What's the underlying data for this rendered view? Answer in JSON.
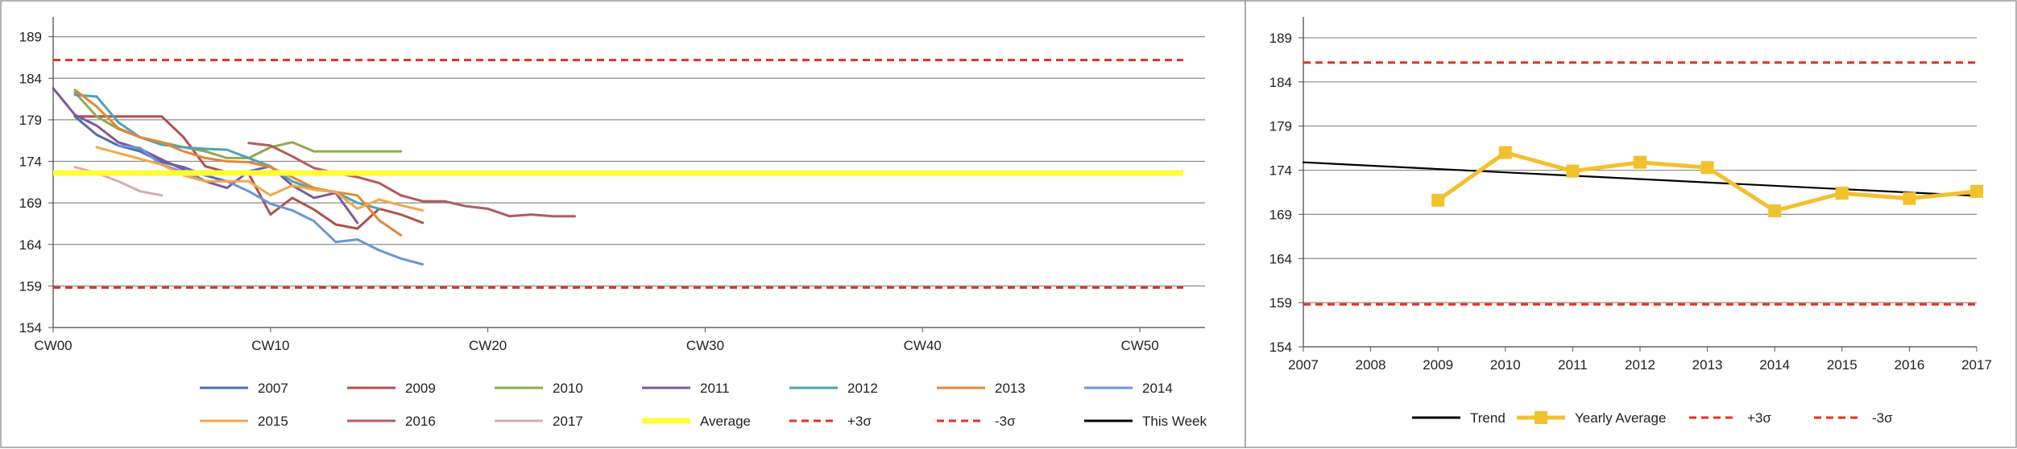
{
  "chart_data": [
    {
      "type": "line",
      "title": "",
      "xlabel": "",
      "ylabel": "",
      "x_ticks": [
        "CW00",
        "CW10",
        "CW20",
        "CW30",
        "CW40",
        "CW50"
      ],
      "x_tick_values": [
        0,
        10,
        20,
        30,
        40,
        50
      ],
      "xlim": [
        0,
        53
      ],
      "y_ticks": [
        "154",
        "159",
        "164",
        "169",
        "174",
        "179",
        "184",
        "189"
      ],
      "ylim": [
        154,
        191
      ],
      "grid": "horizontal",
      "legend_position": "bottom",
      "series": [
        {
          "name": "2007",
          "color": "#4F6EB3",
          "style": "solid",
          "x": [
            1,
            2,
            3,
            4,
            5,
            6,
            7,
            8
          ],
          "y": [
            179.4,
            177.2,
            175.9,
            175.2,
            173.9,
            173.3,
            172.3,
            171.6
          ]
        },
        {
          "name": "2009",
          "color": "#B2504E",
          "style": "solid",
          "x": [
            1,
            2,
            3,
            4,
            5,
            6,
            7,
            8,
            9,
            10,
            11,
            12,
            13,
            14,
            15,
            16,
            17
          ],
          "y": [
            179.4,
            179.4,
            179.4,
            179.4,
            179.4,
            176.9,
            173.4,
            172.7,
            172.5,
            167.6,
            169.6,
            168.2,
            166.4,
            165.9,
            168.3,
            167.6,
            166.6
          ]
        },
        {
          "name": "2010",
          "color": "#8FAA4E",
          "style": "solid",
          "x": [
            1,
            2,
            3,
            4,
            5,
            6,
            7,
            8,
            9,
            10,
            11,
            12,
            13,
            14,
            15,
            16
          ],
          "y": [
            182.3,
            179.4,
            177.9,
            176.9,
            176.3,
            175.7,
            175.2,
            174.4,
            174.4,
            175.7,
            176.3,
            175.2,
            175.2,
            175.2,
            175.2,
            175.2
          ]
        },
        {
          "name": "2011",
          "color": "#7B5A9E",
          "style": "solid",
          "x": [
            0,
            1,
            2,
            3,
            4,
            5,
            6,
            7,
            8,
            9,
            10,
            11,
            12,
            13,
            14
          ],
          "y": [
            182.8,
            179.6,
            178.3,
            176.3,
            175.5,
            174.2,
            173.0,
            171.6,
            170.8,
            172.8,
            173.4,
            171.1,
            169.6,
            170.2,
            166.6
          ]
        },
        {
          "name": "2012",
          "color": "#4EA3B6",
          "style": "solid",
          "x": [
            1,
            2,
            3,
            4,
            5,
            6,
            7,
            8,
            9,
            10,
            11,
            12,
            13,
            14,
            15
          ],
          "y": [
            182.0,
            181.8,
            178.7,
            176.9,
            176.0,
            175.7,
            175.5,
            175.4,
            174.4,
            173.4,
            171.6,
            170.6,
            170.3,
            169.0,
            168.3
          ]
        },
        {
          "name": "2013",
          "color": "#E08838",
          "style": "solid",
          "x": [
            1,
            2,
            3,
            4,
            5,
            6,
            7,
            8,
            9,
            10,
            11,
            12,
            13,
            14,
            15,
            16
          ],
          "y": [
            182.6,
            180.6,
            178.0,
            176.9,
            176.3,
            175.2,
            174.4,
            174.0,
            173.9,
            173.3,
            172.1,
            170.8,
            170.3,
            169.9,
            166.9,
            165.1
          ]
        },
        {
          "name": "2014",
          "color": "#6D94D4",
          "style": "solid",
          "x": [
            3,
            4,
            5,
            6,
            7,
            8,
            9,
            10,
            11,
            12,
            13,
            14,
            15,
            16,
            17
          ],
          "y": [
            175.9,
            175.6,
            173.6,
            172.7,
            171.6,
            171.6,
            170.4,
            168.9,
            168.1,
            166.8,
            164.3,
            164.6,
            163.3,
            162.3,
            161.6
          ]
        },
        {
          "name": "2015",
          "color": "#F3A748",
          "style": "solid",
          "x": [
            2,
            3,
            4,
            5,
            6,
            7,
            8,
            9,
            10,
            11,
            12,
            13,
            14,
            15,
            16,
            17
          ],
          "y": [
            175.7,
            175.0,
            174.3,
            173.6,
            172.3,
            171.6,
            171.6,
            171.6,
            169.9,
            171.1,
            170.6,
            170.3,
            168.3,
            169.4,
            168.7,
            168.1
          ]
        },
        {
          "name": "2016",
          "color": "#B05E5C",
          "style": "solid",
          "x": [
            9,
            10,
            11,
            12,
            13,
            14,
            15,
            16,
            17,
            18,
            19,
            20,
            21,
            22,
            23,
            24
          ],
          "y": [
            176.2,
            175.9,
            174.6,
            173.2,
            172.6,
            172.1,
            171.4,
            169.9,
            169.2,
            169.2,
            168.6,
            168.3,
            167.4,
            167.6,
            167.4,
            167.4
          ]
        },
        {
          "name": "2017",
          "color": "#D4AEAE",
          "style": "solid",
          "x": [
            1,
            2,
            3,
            4,
            5
          ],
          "y": [
            173.3,
            172.6,
            171.6,
            170.4,
            169.9
          ]
        },
        {
          "name": "Average",
          "color": "#FFFF33",
          "style": "thick",
          "x": [
            0,
            52
          ],
          "y": [
            172.6,
            172.6
          ]
        },
        {
          "name": "+3σ",
          "color": "#E0331F",
          "style": "dashed",
          "x": [
            0,
            52
          ],
          "y": [
            186.2,
            186.2
          ]
        },
        {
          "name": "-3σ",
          "color": "#E0331F",
          "style": "dashed",
          "x": [
            0,
            52
          ],
          "y": [
            158.8,
            158.8
          ]
        },
        {
          "name": "This Week",
          "color": "#000000",
          "style": "solid",
          "x": [],
          "y": []
        }
      ]
    },
    {
      "type": "line",
      "title": "",
      "xlabel": "",
      "ylabel": "",
      "x_ticks": [
        "2007",
        "2008",
        "2009",
        "2010",
        "2011",
        "2012",
        "2013",
        "2014",
        "2015",
        "2016",
        "2017"
      ],
      "x_tick_values": [
        2007,
        2008,
        2009,
        2010,
        2011,
        2012,
        2013,
        2014,
        2015,
        2016,
        2017
      ],
      "xlim": [
        2007,
        2017
      ],
      "y_ticks": [
        "154",
        "159",
        "164",
        "169",
        "174",
        "179",
        "184",
        "189"
      ],
      "ylim": [
        154,
        191
      ],
      "grid": "horizontal",
      "legend_position": "bottom",
      "series": [
        {
          "name": "Trend",
          "color": "#000000",
          "style": "solid",
          "x": [
            2007,
            2017
          ],
          "y": [
            174.9,
            171.1
          ]
        },
        {
          "name": "Yearly Average",
          "color": "#F2C12E",
          "style": "markers",
          "x": [
            2009,
            2010,
            2011,
            2012,
            2013,
            2014,
            2015,
            2016,
            2017
          ],
          "y": [
            170.6,
            176.0,
            173.9,
            174.9,
            174.3,
            169.4,
            171.4,
            170.8,
            171.6
          ]
        },
        {
          "name": "+3σ",
          "color": "#E0331F",
          "style": "dashed",
          "x": [
            2007,
            2017
          ],
          "y": [
            186.2,
            186.2
          ]
        },
        {
          "name": "-3σ",
          "color": "#E0331F",
          "style": "dashed",
          "x": [
            2007,
            2017
          ],
          "y": [
            158.8,
            158.8
          ]
        }
      ]
    }
  ]
}
